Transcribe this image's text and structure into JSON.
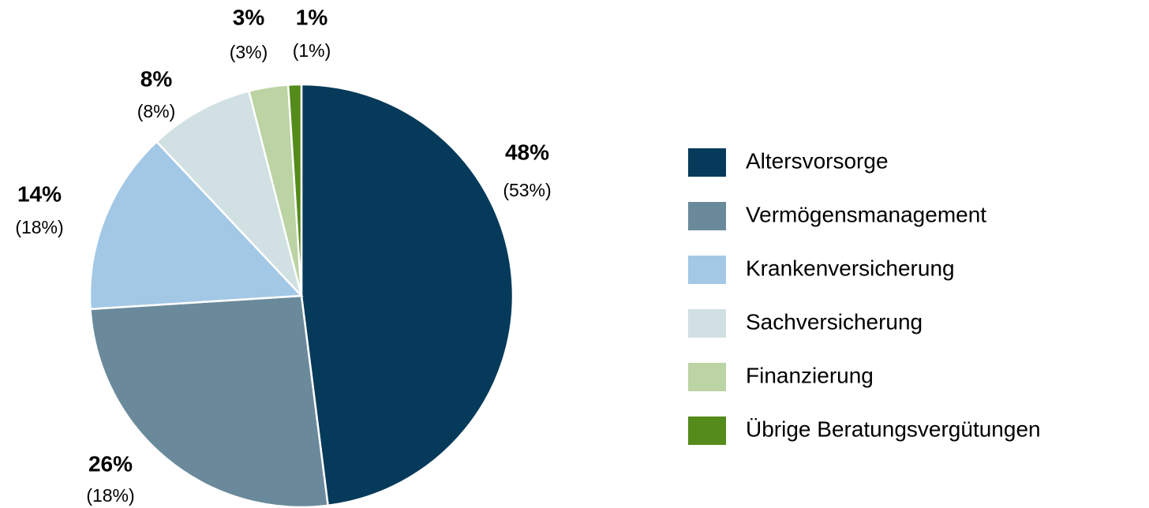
{
  "chart_data": {
    "type": "pie",
    "categories": [
      "Altersvorsorge",
      "Vermögensmanagement",
      "Krankenversicherung",
      "Sachversicherung",
      "Finanzierung",
      "Übrige Beratungsvergütungen"
    ],
    "values": [
      48,
      26,
      14,
      8,
      3,
      1
    ],
    "value_labels": [
      "48%",
      "26%",
      "14%",
      "8%",
      "3%",
      "1%"
    ],
    "prior_labels": [
      "(53%)",
      "(18%)",
      "(18%)",
      "(8%)",
      "(3%)",
      "(1%)"
    ],
    "colors": [
      "#063a5a",
      "#6a8a9c",
      "#a3c8e6",
      "#d1e0e2",
      "#bcd3a4",
      "#548b1a"
    ],
    "legend": "right"
  }
}
